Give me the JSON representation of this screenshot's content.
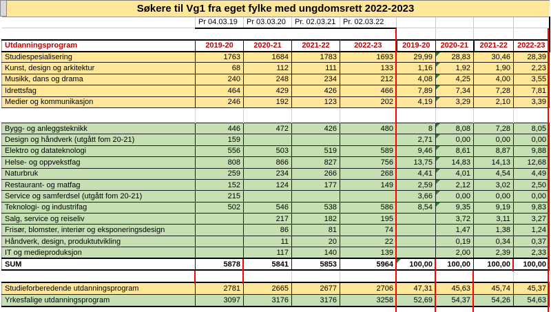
{
  "sheet": {
    "title": "Søkere til Vg1 fra eget fylke med ungdomsrett 2022-2023",
    "date_row": [
      "Pr 04.03.19",
      "Pr 03.03.20",
      "Pr. 02.03.21",
      "Pr. 02.03.22"
    ],
    "header": {
      "program_label": "Utdanningsprogram",
      "abs_years": [
        "2019-20",
        "2020-21",
        "2021-22",
        "2022-23"
      ],
      "pct_years": [
        "2019-20",
        "2020-21",
        "2021-22",
        "2022-23"
      ]
    },
    "rows": [
      {
        "kind": "yellow",
        "label": "Studiespesialisering",
        "abs": [
          "1763",
          "1684",
          "1783",
          "1693"
        ],
        "pct": [
          "29,99",
          "28,83",
          "30,46",
          "28,39"
        ],
        "tri": 1
      },
      {
        "kind": "yellow",
        "label": "Kunst, design og arkitektur",
        "abs": [
          "68",
          "112",
          "111",
          "133"
        ],
        "pct": [
          "1,16",
          "1,92",
          "1,90",
          "2,23"
        ],
        "tri": 1
      },
      {
        "kind": "yellow",
        "label": "Musikk, dans og drama",
        "abs": [
          "240",
          "248",
          "234",
          "212"
        ],
        "pct": [
          "4,08",
          "4,25",
          "4,00",
          "3,55"
        ],
        "tri": 1
      },
      {
        "kind": "yellow",
        "label": "Idrettsfag",
        "abs": [
          "464",
          "429",
          "426",
          "466"
        ],
        "pct": [
          "7,89",
          "7,34",
          "7,28",
          "7,81"
        ],
        "tri": 1
      },
      {
        "kind": "yellow",
        "label": "Medier og kommunikasjon",
        "abs": [
          "246",
          "192",
          "123",
          "202"
        ],
        "pct": [
          "4,19",
          "3,29",
          "2,10",
          "3,39"
        ],
        "tri": 1
      },
      {
        "kind": "blank"
      },
      {
        "kind": "green",
        "label": "Bygg- og anleggsteknikk",
        "abs": [
          "446",
          "472",
          "426",
          "480"
        ],
        "pct": [
          "8",
          "8,08",
          "7,28",
          "8,05"
        ],
        "tri": 1
      },
      {
        "kind": "green",
        "label": "Design og håndverk (utgått fom 20-21)",
        "abs": [
          "159",
          "",
          "",
          ""
        ],
        "pct": [
          "2,71",
          "0,00",
          "0,00",
          "0,00"
        ],
        "tri": 1
      },
      {
        "kind": "green",
        "label": "Elektro og datateknologi",
        "abs": [
          "556",
          "503",
          "519",
          "589"
        ],
        "pct": [
          "9,46",
          "8,61",
          "8,87",
          "9,88"
        ],
        "tri": 1
      },
      {
        "kind": "green",
        "label": "Helse- og oppvekstfag",
        "abs": [
          "808",
          "866",
          "827",
          "756"
        ],
        "pct": [
          "13,75",
          "14,83",
          "14,13",
          "12,68"
        ],
        "tri": 1
      },
      {
        "kind": "green",
        "label": "Naturbruk",
        "abs": [
          "259",
          "234",
          "266",
          "268"
        ],
        "pct": [
          "4,41",
          "4,01",
          "4,54",
          "4,49"
        ],
        "tri": 1
      },
      {
        "kind": "green",
        "label": "Restaurant- og matfag",
        "abs": [
          "152",
          "124",
          "177",
          "149"
        ],
        "pct": [
          "2,59",
          "2,12",
          "3,02",
          "2,50"
        ],
        "tri": 1
      },
      {
        "kind": "green",
        "label": "Service og samferdsel (utgått fom 20-21)",
        "abs": [
          "215",
          "",
          "",
          ""
        ],
        "pct": [
          "3,66",
          "0,00",
          "0,00",
          "0,00"
        ],
        "tri": 1
      },
      {
        "kind": "green",
        "label": "Teknologi- og industrifag",
        "abs": [
          "502",
          "546",
          "538",
          "586"
        ],
        "pct": [
          "8,54",
          "9,35",
          "9,19",
          "9,83"
        ],
        "tri": 1
      },
      {
        "kind": "green",
        "label": "Salg, service og reiseliv",
        "abs": [
          "",
          "217",
          "182",
          "195"
        ],
        "pct": [
          "",
          "3,72",
          "3,11",
          "3,27"
        ],
        "tri": null
      },
      {
        "kind": "green",
        "label": "Frisør, blomster, interiør og eksponeringsdesign",
        "abs": [
          "",
          "86",
          "81",
          "74"
        ],
        "pct": [
          "",
          "1,47",
          "1,38",
          "1,24"
        ],
        "tri": null
      },
      {
        "kind": "green",
        "label": "Håndverk, design, produktutvikling",
        "abs": [
          "",
          "11",
          "20",
          "22"
        ],
        "pct": [
          "",
          "0,19",
          "0,34",
          "0,37"
        ],
        "tri": null
      },
      {
        "kind": "green",
        "label": "IT og medieproduksjon",
        "abs": [
          "",
          "117",
          "140",
          "139"
        ],
        "pct": [
          "",
          "2,00",
          "2,39",
          "2,33"
        ],
        "tri": null
      },
      {
        "kind": "sum",
        "label": "SUM",
        "abs": [
          "5878",
          "5841",
          "5853",
          "5964"
        ],
        "pct": [
          "100,00",
          "100,00",
          "100,00",
          "100,00"
        ],
        "tri": 0
      },
      {
        "kind": "blank2"
      },
      {
        "kind": "byellow",
        "label": "Studieforberedende utdanningsprogram",
        "abs": [
          "2781",
          "2665",
          "2677",
          "2706"
        ],
        "pct": [
          "47,31",
          "45,63",
          "45,74",
          "45,37"
        ],
        "tri": null
      },
      {
        "kind": "bgreen",
        "label": "Yrkesfalige utdanningsprogram",
        "abs": [
          "3097",
          "3176",
          "3176",
          "3258"
        ],
        "pct": [
          "52,69",
          "54,37",
          "54,26",
          "54,63"
        ],
        "tri": null
      }
    ],
    "colors": {
      "yellow_fill": "#FFE699",
      "green_fill": "#C6E0B4",
      "header_text_red": "#C00000",
      "annotation_red": "#FF0000",
      "error_indicator_green": "#2E7D32",
      "corner_grey": "#D9D9D9"
    }
  }
}
